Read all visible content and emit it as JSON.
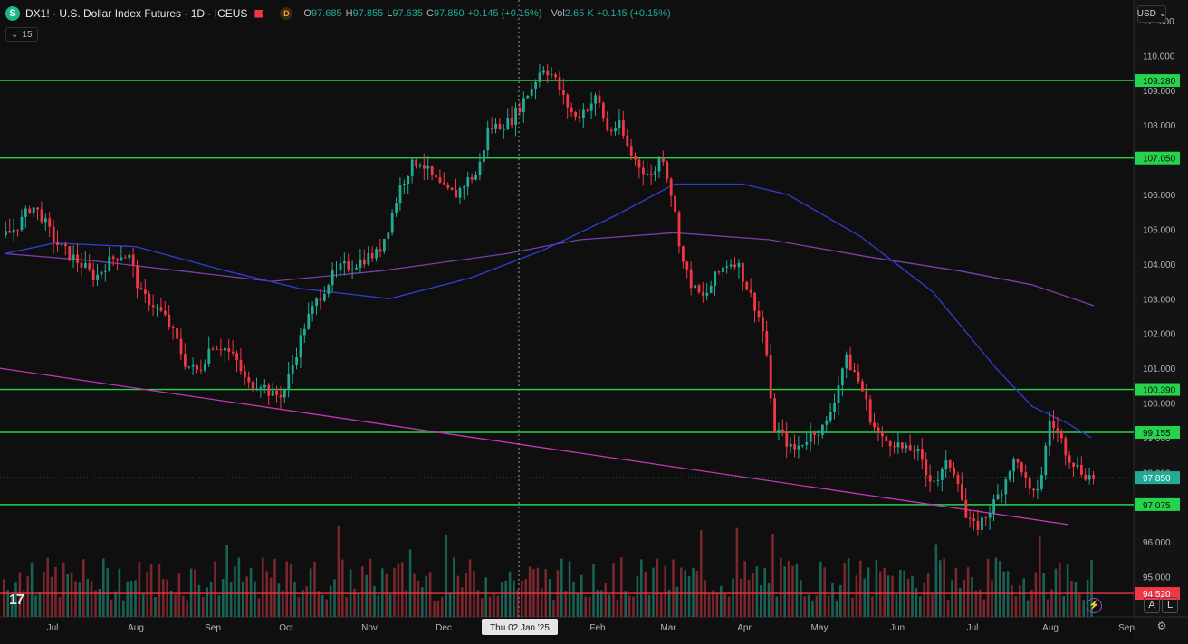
{
  "header": {
    "symbol_badge": "S",
    "title": "DX1! · U.S. Dollar Index Futures · 1D · ICEUS",
    "d_badge": "D",
    "ohlc": {
      "o_key": "O",
      "o": "97.685",
      "h_key": "H",
      "h": "97.855",
      "l_key": "L",
      "l": "97.635",
      "c_key": "C",
      "c": "97.850",
      "change": "+0.145 (+0.15%)"
    },
    "vol_key": "Vol",
    "vol": "2.65 K",
    "vol_change": "+0.145 (+0.15%)"
  },
  "indicator_row": {
    "label": "15"
  },
  "currency": "USD",
  "crosshair_label": "Thu 02 Jan '25",
  "logo_text": "17",
  "scale_buttons": {
    "a": "A",
    "l": "L"
  },
  "colors": {
    "up": "#22ab94",
    "down": "#f23645",
    "level": "#27d34c",
    "support": "#f23645",
    "ma_fast": "#2f3fd6",
    "ma_slow": "#7a3fa8",
    "trend": "#c236b6"
  },
  "icons": {
    "flag": "red-flag-icon",
    "bolt": "lightning-icon",
    "gear": "gear-icon",
    "chevron": "chevron-down-icon",
    "logo": "tradingview-logo-icon"
  },
  "chart_data": {
    "type": "candlestick",
    "x_labels": [
      "Jul",
      "Aug",
      "Sep",
      "Oct",
      "Nov",
      "Dec",
      "Feb",
      "Mar",
      "Apr",
      "May",
      "Jun",
      "Jul",
      "Aug",
      "Sep"
    ],
    "y_ticks": [
      "111.000",
      "110.000",
      "109.000",
      "108.000",
      "107.000",
      "106.000",
      "105.000",
      "104.000",
      "103.000",
      "102.000",
      "101.000",
      "100.000",
      "99.000",
      "98.000",
      "96.000",
      "95.000"
    ],
    "ylim": [
      94.0,
      111.4
    ],
    "levels": [
      {
        "value": 109.28,
        "label": "109.280",
        "color": "#27d34c"
      },
      {
        "value": 107.05,
        "label": "107.050",
        "color": "#27d34c"
      },
      {
        "value": 100.39,
        "label": "100.390",
        "color": "#27d34c"
      },
      {
        "value": 99.155,
        "label": "99.155",
        "color": "#27d34c"
      },
      {
        "value": 97.075,
        "label": "97.075",
        "color": "#27d34c"
      },
      {
        "value": 94.52,
        "label": "94.520",
        "color": "#f23645"
      }
    ],
    "last_price": {
      "value": 97.85,
      "label": "97.850"
    },
    "price_path": [
      [
        0,
        104.8
      ],
      [
        10,
        104.9
      ],
      [
        24,
        105.3
      ],
      [
        33,
        105.7
      ],
      [
        44,
        105.4
      ],
      [
        56,
        104.8
      ],
      [
        64,
        104.5
      ],
      [
        74,
        104.3
      ],
      [
        88,
        104.0
      ],
      [
        104,
        103.6
      ],
      [
        116,
        104.0
      ],
      [
        130,
        104.3
      ],
      [
        142,
        104.2
      ],
      [
        154,
        103.1
      ],
      [
        166,
        102.9
      ],
      [
        180,
        102.5
      ],
      [
        192,
        101.9
      ],
      [
        204,
        101.1
      ],
      [
        218,
        100.9
      ],
      [
        232,
        101.7
      ],
      [
        246,
        101.6
      ],
      [
        260,
        101.2
      ],
      [
        272,
        100.5
      ],
      [
        286,
        100.6
      ],
      [
        300,
        100.2
      ],
      [
        312,
        100.3
      ],
      [
        324,
        101.3
      ],
      [
        336,
        102.3
      ],
      [
        350,
        103.0
      ],
      [
        364,
        103.6
      ],
      [
        376,
        103.9
      ],
      [
        390,
        104.0
      ],
      [
        404,
        104.2
      ],
      [
        416,
        104.3
      ],
      [
        428,
        105.1
      ],
      [
        440,
        106.2
      ],
      [
        452,
        106.8
      ],
      [
        462,
        107.0
      ],
      [
        476,
        106.5
      ],
      [
        490,
        106.1
      ],
      [
        502,
        106.0
      ],
      [
        514,
        106.4
      ],
      [
        526,
        106.6
      ],
      [
        538,
        107.9
      ],
      [
        550,
        108.0
      ],
      [
        562,
        108.1
      ],
      [
        574,
        108.6
      ],
      [
        586,
        109.1
      ],
      [
        598,
        109.7
      ],
      [
        610,
        109.4
      ],
      [
        622,
        108.7
      ],
      [
        634,
        108.2
      ],
      [
        646,
        108.5
      ],
      [
        658,
        108.8
      ],
      [
        670,
        107.8
      ],
      [
        682,
        108.0
      ],
      [
        694,
        107.2
      ],
      [
        706,
        106.8
      ],
      [
        718,
        106.5
      ],
      [
        730,
        107.2
      ],
      [
        742,
        105.8
      ],
      [
        752,
        104.1
      ],
      [
        764,
        103.3
      ],
      [
        776,
        103.0
      ],
      [
        788,
        103.6
      ],
      [
        800,
        104.0
      ],
      [
        812,
        104.1
      ],
      [
        824,
        103.3
      ],
      [
        834,
        102.7
      ],
      [
        844,
        101.8
      ],
      [
        852,
        99.3
      ],
      [
        862,
        99.1
      ],
      [
        874,
        98.6
      ],
      [
        886,
        98.9
      ],
      [
        898,
        99.2
      ],
      [
        910,
        99.3
      ],
      [
        920,
        100.1
      ],
      [
        932,
        101.3
      ],
      [
        942,
        100.9
      ],
      [
        952,
        100.3
      ],
      [
        962,
        99.4
      ],
      [
        974,
        98.9
      ],
      [
        986,
        98.9
      ],
      [
        998,
        98.6
      ],
      [
        1010,
        98.7
      ],
      [
        1022,
        97.9
      ],
      [
        1034,
        97.8
      ],
      [
        1046,
        98.3
      ],
      [
        1056,
        97.9
      ],
      [
        1066,
        96.6
      ],
      [
        1076,
        96.4
      ],
      [
        1086,
        96.7
      ],
      [
        1096,
        97.1
      ],
      [
        1106,
        97.6
      ],
      [
        1116,
        98.3
      ],
      [
        1126,
        98.2
      ],
      [
        1138,
        97.2
      ],
      [
        1148,
        97.8
      ],
      [
        1158,
        99.5
      ],
      [
        1168,
        99.1
      ],
      [
        1178,
        98.5
      ],
      [
        1190,
        98.1
      ],
      [
        1200,
        97.9
      ],
      [
        1208,
        97.85
      ]
    ],
    "ma_fast": [
      [
        5,
        104.3
      ],
      [
        60,
        104.6
      ],
      [
        150,
        104.5
      ],
      [
        250,
        103.8
      ],
      [
        330,
        103.3
      ],
      [
        430,
        103.0
      ],
      [
        520,
        103.6
      ],
      [
        600,
        104.4
      ],
      [
        680,
        105.4
      ],
      [
        745,
        106.3
      ],
      [
        820,
        106.3
      ],
      [
        870,
        106.0
      ],
      [
        950,
        104.8
      ],
      [
        1030,
        103.2
      ],
      [
        1100,
        101.0
      ],
      [
        1140,
        99.9
      ],
      [
        1180,
        99.4
      ],
      [
        1205,
        99.0
      ]
    ],
    "ma_slow": [
      [
        5,
        104.3
      ],
      [
        100,
        104.1
      ],
      [
        200,
        103.8
      ],
      [
        300,
        103.5
      ],
      [
        420,
        103.8
      ],
      [
        560,
        104.3
      ],
      [
        640,
        104.7
      ],
      [
        745,
        104.9
      ],
      [
        850,
        104.7
      ],
      [
        960,
        104.2
      ],
      [
        1060,
        103.8
      ],
      [
        1140,
        103.4
      ],
      [
        1208,
        102.8
      ]
    ],
    "trendline": [
      [
        0,
        101.0
      ],
      [
        1180,
        96.5
      ]
    ]
  }
}
